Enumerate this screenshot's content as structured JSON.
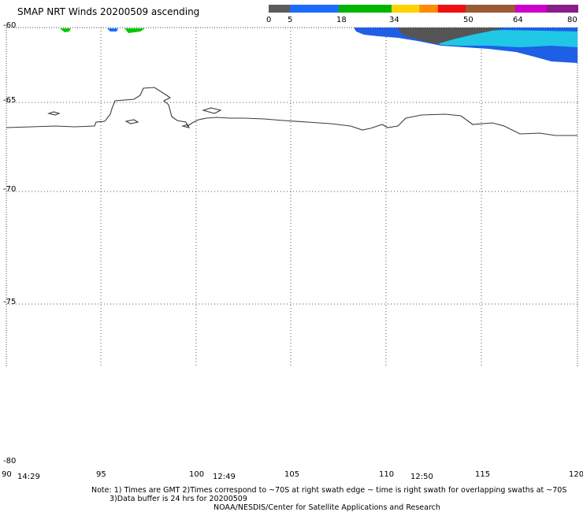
{
  "title": "SMAP NRT Winds 20200509 ascending",
  "colorbar": {
    "labels": [
      "0",
      "5",
      "18",
      "34",
      "50",
      "64",
      "80"
    ],
    "segments": [
      {
        "from": 0,
        "to": 5,
        "color": "#5c5c5c"
      },
      {
        "from": 5,
        "to": 18,
        "color": "#1e6cff"
      },
      {
        "from": 18,
        "to": 34,
        "color": "#00b400"
      },
      {
        "from": 34,
        "to": 40,
        "color": "#ffd200"
      },
      {
        "from": 40,
        "to": 44,
        "color": "#ff8c00"
      },
      {
        "from": 44,
        "to": 50,
        "color": "#ee1111"
      },
      {
        "from": 50,
        "to": 64,
        "color": "#9a5a36"
      },
      {
        "from": 64,
        "to": 72,
        "color": "#cc00cc"
      },
      {
        "from": 72,
        "to": 80,
        "color": "#8a1d8a"
      }
    ]
  },
  "lat_labels": [
    "-60",
    "-65",
    "-70",
    "-75",
    "-80"
  ],
  "lon_labels": [
    "90",
    "95",
    "100",
    "105",
    "110",
    "115",
    "120"
  ],
  "time_labels": [
    "14:29",
    "12:49",
    "12:50"
  ],
  "notes": {
    "line1": "Note: 1) Times are GMT 2)Times correspond to ~70S at right swath edge ~ time is right swath for overlapping swaths at ~70S",
    "line2": "3)Data buffer is 24 hrs for 20200509",
    "line3": "NOAA/NESDIS/Center for Satellite Applications and Research"
  }
}
